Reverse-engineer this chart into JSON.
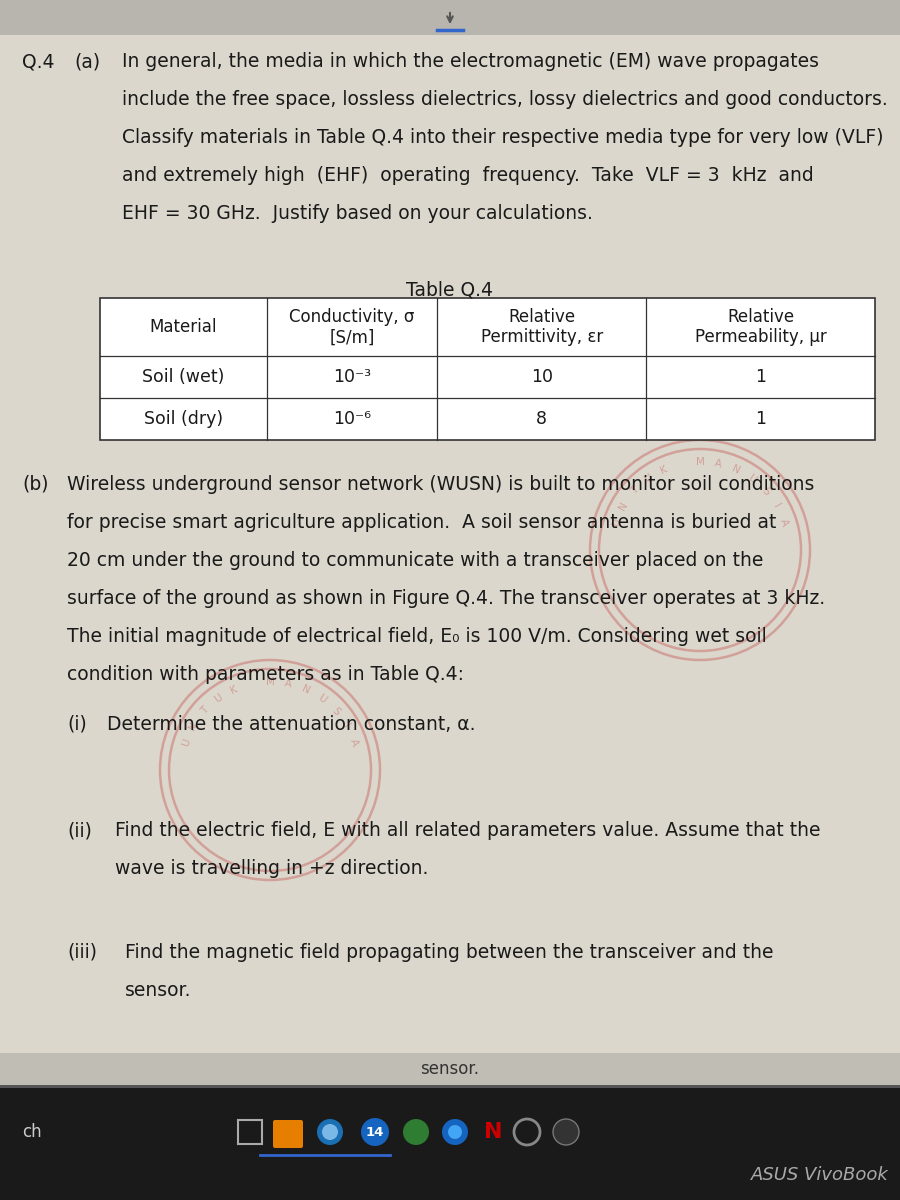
{
  "page_bg": "#d4d0c6",
  "content_bg": "#dbd7cc",
  "top_bar_bg": "#c5c2bb",
  "text_color": "#1a1a1a",
  "table_bg": "#ffffff",
  "table_border": "#333333",
  "part_a_q": "Q.4",
  "part_a_label": "(a)",
  "part_a_line1": "In general, the media in which the electromagnetic (EM) wave propagates",
  "part_a_line2": "include the free space, lossless dielectrics, lossy dielectrics and good conductors.",
  "part_a_line3": "Classify materials in Table Q.4 into their respective media type for very low (VLF)",
  "part_a_line4": "and extremely high  (EHF)  operating  frequency.  Take  VLF = 3  kHz  and",
  "part_a_line5": "EHF = 30 GHz.  Justify based on your calculations.",
  "table_title": "Table Q.4",
  "col_headers": [
    "Material",
    "Conductivity, σ\n[S/m]",
    "Relative\nPermittivity, εr",
    "Relative\nPermeability, μr"
  ],
  "row1": [
    "Soil (wet)",
    "10⁻³",
    "10",
    "1"
  ],
  "row2": [
    "Soil (dry)",
    "10⁻⁶",
    "8",
    "1"
  ],
  "part_b_label": "(b)",
  "part_b_line1": "Wireless underground sensor network (WUSN) is built to monitor soil conditions",
  "part_b_line2": "for precise smart agriculture application.  A soil sensor antenna is buried at",
  "part_b_line3": "20 cm under the ground to communicate with a transceiver placed on the",
  "part_b_line4": "surface of the ground as shown in Figure Q.4. The transceiver operates at 3 kHz.",
  "part_b_line5": "The initial magnitude of electrical field, E₀ is 100 V/m. Considering wet soil",
  "part_b_line6": "condition with parameters as in Table Q.4:",
  "sub_i_label": "(i)",
  "sub_i_text": "Determine the attenuation constant, α.",
  "sub_ii_label": "(ii)",
  "sub_ii_line1": "Find the electric field, E with all related parameters value. Assume that the",
  "sub_ii_line2": "wave is travelling in +z direction.",
  "sub_iii_label": "(iii)",
  "sub_iii_line1": "Find the magnetic field propagating between the transceiver and the",
  "sub_iii_line2": "sensor.",
  "footer_text": "sensor.",
  "taskbar_bg": "#1a1a1a",
  "taskbar_label": "ch",
  "taskbar_num": "14",
  "brand_text": "ASUS VivoBook",
  "stamp_color": "#bb2222",
  "stamp_alpha": 0.3
}
